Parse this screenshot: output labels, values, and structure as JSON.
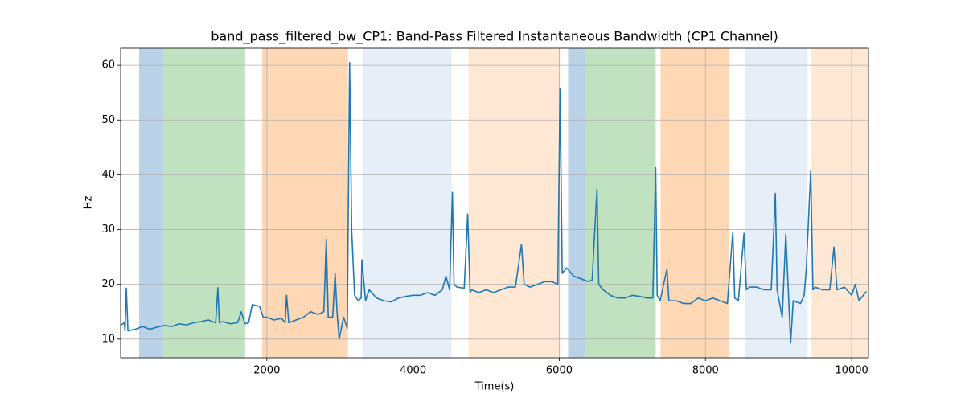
{
  "chart_data": {
    "type": "line",
    "title": "band_pass_filtered_bw_CP1: Band-Pass Filtered Instantaneous Bandwidth (CP1 Channel)",
    "xlabel": "Time(s)",
    "ylabel": "Hz",
    "xlim": [
      0,
      10230
    ],
    "ylim": [
      6.6,
      63.1
    ],
    "xticks": [
      2000,
      4000,
      6000,
      8000,
      10000
    ],
    "yticks": [
      10,
      20,
      30,
      40,
      50,
      60
    ],
    "grid": true,
    "spans": [
      {
        "x0": 253,
        "x1": 582,
        "color": "#b9d2e8"
      },
      {
        "x0": 582,
        "x1": 1703,
        "color": "#c0e2c0"
      },
      {
        "x0": 1934,
        "x1": 3110,
        "color": "#fed7b4"
      },
      {
        "x0": 3308,
        "x1": 4527,
        "color": "#e6eef8"
      },
      {
        "x0": 4758,
        "x1": 6011,
        "color": "#fee8d4"
      },
      {
        "x0": 6121,
        "x1": 6363,
        "color": "#b9d2e8"
      },
      {
        "x0": 6363,
        "x1": 7319,
        "color": "#c0e2c0"
      },
      {
        "x0": 7385,
        "x1": 8319,
        "color": "#fed7b4"
      },
      {
        "x0": 8538,
        "x1": 9396,
        "color": "#e6eef8"
      },
      {
        "x0": 9451,
        "x1": 10230,
        "color": "#fee8d4"
      }
    ],
    "x": [
      0,
      50,
      60,
      77,
      100,
      200,
      300,
      400,
      500,
      600,
      700,
      800,
      900,
      1000,
      1100,
      1200,
      1300,
      1330,
      1350,
      1400,
      1500,
      1600,
      1650,
      1700,
      1750,
      1800,
      1900,
      1950,
      2000,
      2100,
      2200,
      2250,
      2270,
      2300,
      2400,
      2500,
      2600,
      2700,
      2780,
      2813,
      2840,
      2900,
      2934,
      2960,
      2989,
      3050,
      3100,
      3132,
      3160,
      3200,
      3250,
      3290,
      3300,
      3350,
      3400,
      3500,
      3600,
      3700,
      3800,
      3900,
      4000,
      4100,
      4200,
      4300,
      4400,
      4450,
      4500,
      4538,
      4560,
      4600,
      4700,
      4747,
      4780,
      4800,
      4900,
      5000,
      5100,
      5200,
      5300,
      5400,
      5483,
      5520,
      5600,
      5700,
      5800,
      5900,
      5980,
      6011,
      6040,
      6100,
      6200,
      6300,
      6400,
      6450,
      6516,
      6540,
      6600,
      6700,
      6800,
      6900,
      7000,
      7100,
      7200,
      7280,
      7319,
      7340,
      7380,
      7473,
      7500,
      7600,
      7700,
      7800,
      7900,
      8000,
      8100,
      8200,
      8300,
      8374,
      8400,
      8450,
      8527,
      8560,
      8600,
      8700,
      8800,
      8900,
      8956,
      8980,
      9050,
      9099,
      9165,
      9200,
      9300,
      9350,
      9380,
      9440,
      9470,
      9500,
      9600,
      9700,
      9758,
      9800,
      9900,
      10000,
      10050,
      10100,
      10200
    ],
    "series": [
      {
        "name": "band_pass_filtered_bw_CP1",
        "color": "#1f77b4",
        "values": [
          12.5,
          13,
          11.5,
          19.3,
          11.5,
          11.8,
          12.3,
          11.8,
          12.2,
          12.5,
          12.3,
          12.8,
          12.6,
          13,
          13.2,
          13.5,
          13,
          19.4,
          13,
          13.2,
          12.8,
          13,
          15,
          12.8,
          13,
          16.3,
          16,
          14,
          14,
          13.5,
          13.8,
          13,
          18,
          13,
          13.5,
          14,
          15,
          14.5,
          15,
          28.3,
          14,
          14,
          22,
          15,
          10,
          14,
          12,
          60.5,
          30,
          18,
          17,
          17.5,
          24.5,
          17,
          19,
          17.5,
          17,
          16.8,
          17.5,
          17.8,
          18,
          18,
          18.5,
          18,
          19,
          21.5,
          19,
          36.8,
          20,
          19.5,
          19.3,
          32.8,
          18.5,
          19,
          18.5,
          19,
          18.5,
          19,
          19.5,
          19.5,
          27.3,
          20,
          19.5,
          20,
          20.5,
          20.5,
          20,
          55.8,
          22,
          23,
          21.5,
          21,
          20.5,
          20.8,
          37.4,
          20,
          19,
          18,
          17.5,
          17.5,
          18,
          17.8,
          17.5,
          17.5,
          41.3,
          18,
          17,
          22.8,
          17,
          17,
          16.5,
          16.5,
          17.5,
          17,
          17.5,
          17,
          16.5,
          29.5,
          17.5,
          17,
          29.3,
          19,
          19.5,
          19.5,
          19,
          19,
          36.6,
          19,
          14,
          29.2,
          9.3,
          17,
          16.5,
          18,
          23,
          40.8,
          19,
          19.5,
          19,
          19,
          26.8,
          19,
          19.5,
          18,
          20,
          17,
          18.7
        ]
      }
    ]
  }
}
